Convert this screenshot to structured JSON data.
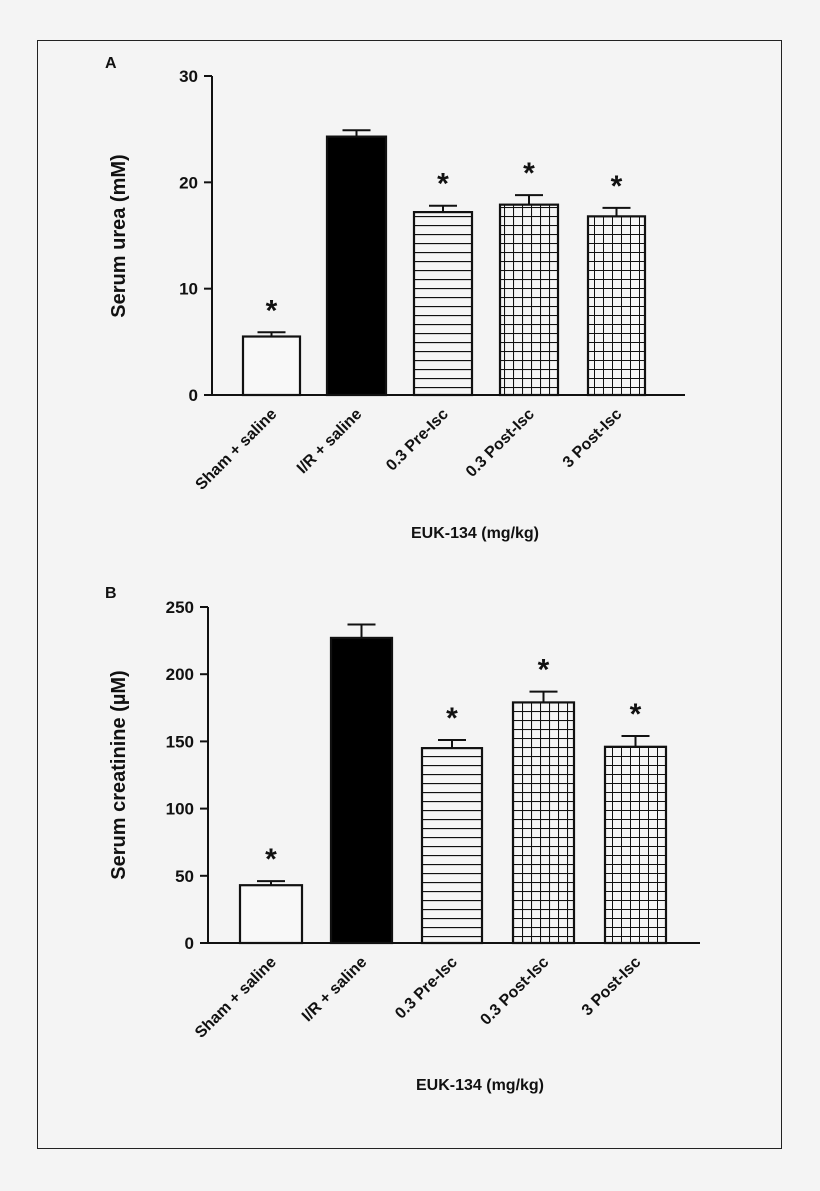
{
  "chart_data": [
    {
      "type": "bar",
      "panel": "A",
      "categories": [
        "Sham + saline",
        "I/R + saline",
        "0.3 Pre-Isc",
        "0.3 Post-Isc",
        "3 Post-Isc"
      ],
      "values": [
        5.5,
        24.3,
        17.2,
        17.9,
        16.8
      ],
      "error_upper": [
        5.9,
        24.9,
        17.8,
        18.8,
        17.6
      ],
      "significant": [
        true,
        false,
        true,
        true,
        true
      ],
      "significance_marker": "*",
      "fills": [
        "white",
        "black",
        "hlines",
        "grid",
        "grid-fine"
      ],
      "xlabel": "EUK-134 (mg/kg)",
      "ylabel": "Serum urea (mM)",
      "ylim": [
        0,
        30
      ],
      "yticks": [
        "0",
        "10",
        "20",
        "30"
      ],
      "ytick_values": [
        0,
        10,
        20,
        30
      ]
    },
    {
      "type": "bar",
      "panel": "B",
      "categories": [
        "Sham + saline",
        "I/R + saline",
        "0.3 Pre-Isc",
        "0.3 Post-Isc",
        "3 Post-Isc"
      ],
      "values": [
        43,
        227,
        145,
        179,
        146
      ],
      "error_upper": [
        46,
        237,
        151,
        187,
        154
      ],
      "significant": [
        true,
        false,
        true,
        true,
        true
      ],
      "significance_marker": "*",
      "fills": [
        "white",
        "black",
        "hlines",
        "grid",
        "grid-fine"
      ],
      "xlabel": "EUK-134 (mg/kg)",
      "ylabel": "Serum creatinine (µM)",
      "ylim": [
        0,
        250
      ],
      "yticks": [
        "0",
        "50",
        "100",
        "150",
        "200",
        "250"
      ],
      "ytick_values": [
        0,
        50,
        100,
        150,
        200,
        250
      ]
    }
  ]
}
